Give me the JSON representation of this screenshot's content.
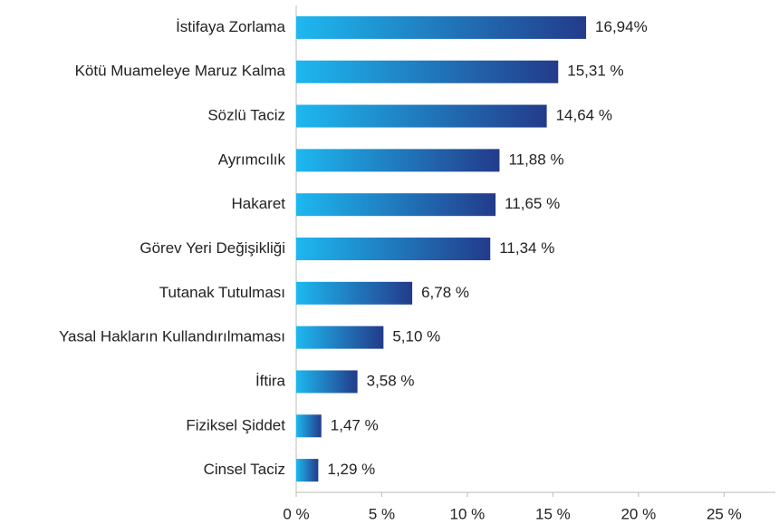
{
  "chart_data": {
    "type": "barh",
    "categories": [
      "İstifaya Zorlama",
      "Kötü Muameleye Maruz Kalma",
      "Sözlü Taciz",
      "Ayrımcılık",
      "Hakaret",
      "Görev Yeri Değişikliği",
      "Tutanak Tutulması",
      "Yasal Hakların Kullandırılmaması",
      "İftira",
      "Fiziksel Şiddet",
      "Cinsel Taciz"
    ],
    "values": [
      16.94,
      15.31,
      14.64,
      11.88,
      11.65,
      11.34,
      6.78,
      5.1,
      3.58,
      1.47,
      1.29
    ],
    "value_labels": [
      "16,94%",
      "15,31 %",
      "14,64 %",
      "11,88 %",
      "11,65 %",
      "11,34 %",
      "6,78 %",
      "5,10 %",
      "3,58 %",
      "1,47 %",
      "1,29 %"
    ],
    "gradient": [
      "#1db8f0",
      "#233b8a"
    ],
    "xlim": [
      0,
      28
    ],
    "xticks": [
      {
        "value": 0,
        "label": "0 %"
      },
      {
        "value": 5,
        "label": "5 %"
      },
      {
        "value": 10,
        "label": "10 %"
      },
      {
        "value": 15,
        "label": "15 %"
      },
      {
        "value": 20,
        "label": "20 %"
      },
      {
        "value": 25,
        "label": "25 %"
      }
    ],
    "grid": false
  }
}
